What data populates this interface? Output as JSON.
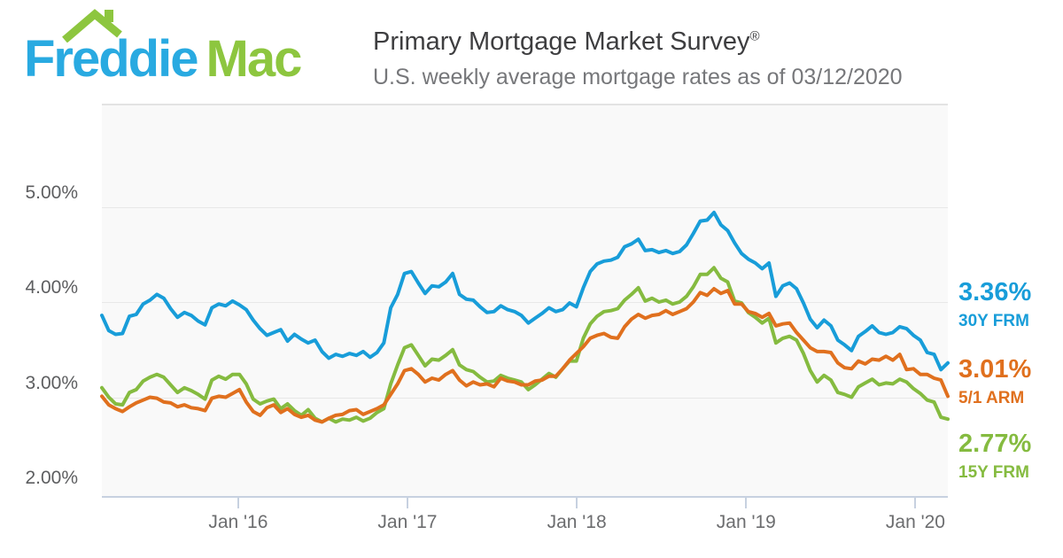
{
  "header": {
    "logo_word1": "Freddie",
    "logo_word2": "Mac",
    "logo_blue": "#29aae1",
    "logo_green": "#8dc63f",
    "title": "Primary Mortgage Market Survey",
    "title_mark": "®",
    "subtitle": "U.S. weekly average mortgage rates as of 03/12/2020"
  },
  "chart_data": {
    "type": "line",
    "title": "Primary Mortgage Market Survey",
    "subtitle": "U.S. weekly average mortgage rates as of 03/12/2020",
    "x_start": "2015-03-12",
    "x_end": "2020-03-12",
    "x_note": "values evenly spaced (~biweekly weekly-average samples)",
    "ylim": [
      2.0,
      6.1
    ],
    "grid": true,
    "legend_position": "right",
    "plot_bg": "#f9f9f9",
    "gridline_color": "#e8e8e8",
    "axis_color": "#c7d1e0",
    "yticks": [
      {
        "label": "5.00%",
        "value": 5.0
      },
      {
        "label": "4.00%",
        "value": 4.0
      },
      {
        "label": "3.00%",
        "value": 3.0
      },
      {
        "label": "2.00%",
        "value": 2.0
      }
    ],
    "xticks": [
      {
        "label": "Jan '16",
        "pos": 0.1611
      },
      {
        "label": "Jan '17",
        "pos": 0.3612
      },
      {
        "label": "Jan '18",
        "pos": 0.5614
      },
      {
        "label": "Jan '19",
        "pos": 0.7616
      },
      {
        "label": "Jan '20",
        "pos": 0.9617
      }
    ],
    "series": [
      {
        "name": "30Y FRM",
        "end_value": "3.36%",
        "color": "#189dd9",
        "values": [
          3.86,
          3.7,
          3.66,
          3.67,
          3.85,
          3.87,
          3.98,
          4.02,
          4.08,
          4.04,
          3.93,
          3.84,
          3.89,
          3.86,
          3.8,
          3.76,
          3.94,
          3.98,
          3.96,
          4.01,
          3.97,
          3.92,
          3.81,
          3.72,
          3.65,
          3.68,
          3.71,
          3.59,
          3.66,
          3.61,
          3.57,
          3.6,
          3.48,
          3.41,
          3.45,
          3.43,
          3.46,
          3.44,
          3.48,
          3.42,
          3.47,
          3.57,
          3.94,
          4.08,
          4.3,
          4.32,
          4.2,
          4.09,
          4.17,
          4.16,
          4.21,
          4.3,
          4.08,
          4.03,
          4.02,
          3.95,
          3.89,
          3.9,
          3.96,
          3.92,
          3.9,
          3.86,
          3.78,
          3.83,
          3.88,
          3.94,
          3.9,
          3.92,
          3.99,
          3.95,
          4.15,
          4.32,
          4.4,
          4.43,
          4.44,
          4.47,
          4.58,
          4.61,
          4.66,
          4.54,
          4.55,
          4.52,
          4.54,
          4.51,
          4.53,
          4.6,
          4.72,
          4.85,
          4.86,
          4.94,
          4.81,
          4.75,
          4.62,
          4.51,
          4.45,
          4.41,
          4.35,
          4.41,
          4.06,
          4.17,
          4.2,
          4.14,
          3.99,
          3.82,
          3.73,
          3.81,
          3.75,
          3.6,
          3.55,
          3.49,
          3.64,
          3.69,
          3.75,
          3.68,
          3.66,
          3.68,
          3.74,
          3.72,
          3.65,
          3.6,
          3.47,
          3.45,
          3.29,
          3.36
        ]
      },
      {
        "name": "5/1 ARM",
        "end_value": "3.01%",
        "color": "#e0701e",
        "values": [
          3.01,
          2.92,
          2.88,
          2.85,
          2.9,
          2.94,
          2.97,
          3.0,
          2.99,
          2.95,
          2.94,
          2.9,
          2.92,
          2.89,
          2.88,
          2.86,
          2.99,
          3.01,
          3.0,
          3.04,
          3.08,
          2.95,
          2.85,
          2.81,
          2.89,
          2.92,
          2.84,
          2.88,
          2.82,
          2.79,
          2.81,
          2.76,
          2.74,
          2.78,
          2.81,
          2.82,
          2.86,
          2.87,
          2.82,
          2.85,
          2.88,
          2.92,
          3.03,
          3.14,
          3.28,
          3.3,
          3.24,
          3.16,
          3.2,
          3.18,
          3.24,
          3.28,
          3.18,
          3.12,
          3.16,
          3.13,
          3.14,
          3.11,
          3.2,
          3.17,
          3.16,
          3.13,
          3.13,
          3.17,
          3.18,
          3.22,
          3.22,
          3.3,
          3.39,
          3.46,
          3.53,
          3.62,
          3.65,
          3.67,
          3.63,
          3.62,
          3.74,
          3.82,
          3.87,
          3.83,
          3.86,
          3.87,
          3.91,
          3.87,
          3.9,
          3.93,
          4.0,
          4.1,
          4.07,
          4.14,
          4.09,
          4.12,
          3.98,
          3.98,
          3.9,
          3.88,
          3.84,
          3.88,
          3.75,
          3.77,
          3.78,
          3.68,
          3.6,
          3.52,
          3.48,
          3.48,
          3.47,
          3.36,
          3.31,
          3.3,
          3.38,
          3.35,
          3.4,
          3.39,
          3.43,
          3.39,
          3.45,
          3.29,
          3.3,
          3.24,
          3.24,
          3.2,
          3.18,
          3.01
        ]
      },
      {
        "name": "15Y FRM",
        "end_value": "2.77%",
        "color": "#85bb40",
        "values": [
          3.1,
          3.0,
          2.93,
          2.92,
          3.05,
          3.08,
          3.17,
          3.21,
          3.24,
          3.21,
          3.13,
          3.05,
          3.1,
          3.07,
          3.03,
          2.98,
          3.18,
          3.22,
          3.19,
          3.24,
          3.24,
          3.14,
          2.98,
          2.93,
          2.96,
          2.98,
          2.88,
          2.93,
          2.86,
          2.81,
          2.87,
          2.78,
          2.74,
          2.78,
          2.74,
          2.77,
          2.76,
          2.79,
          2.75,
          2.78,
          2.84,
          2.88,
          3.14,
          3.34,
          3.52,
          3.55,
          3.44,
          3.33,
          3.4,
          3.39,
          3.44,
          3.5,
          3.34,
          3.29,
          3.27,
          3.21,
          3.16,
          3.17,
          3.23,
          3.2,
          3.18,
          3.16,
          3.08,
          3.13,
          3.19,
          3.25,
          3.21,
          3.3,
          3.38,
          3.38,
          3.62,
          3.77,
          3.85,
          3.9,
          3.91,
          3.93,
          4.02,
          4.08,
          4.15,
          4.01,
          4.04,
          4.0,
          4.02,
          3.98,
          4.0,
          4.06,
          4.16,
          4.29,
          4.29,
          4.36,
          4.25,
          4.21,
          4.01,
          3.99,
          3.89,
          3.84,
          3.78,
          3.83,
          3.57,
          3.62,
          3.64,
          3.6,
          3.46,
          3.28,
          3.16,
          3.23,
          3.18,
          3.05,
          3.03,
          3.0,
          3.11,
          3.15,
          3.19,
          3.13,
          3.15,
          3.14,
          3.19,
          3.16,
          3.09,
          3.04,
          2.97,
          2.95,
          2.79,
          2.77
        ]
      }
    ]
  }
}
